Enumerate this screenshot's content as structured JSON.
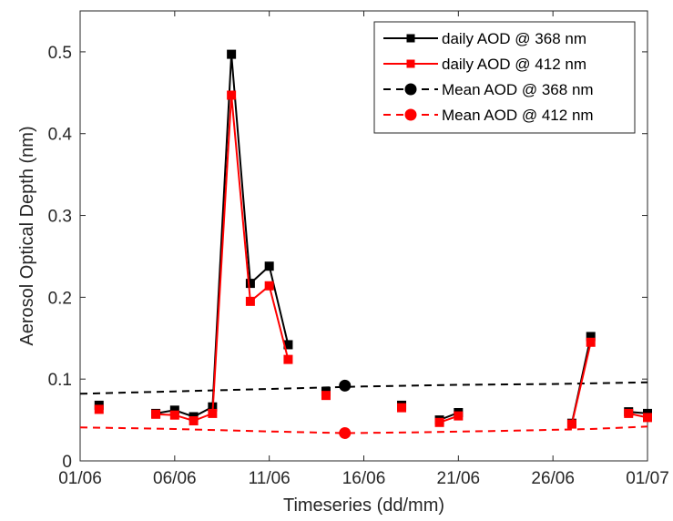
{
  "chart_data": {
    "type": "line",
    "title": "",
    "xlabel": "Timeseries (dd/mm)",
    "ylabel": "Aerosol Optical Depth (nm)",
    "xlim": [
      1,
      31
    ],
    "ylim": [
      0,
      0.55
    ],
    "xticks": [
      {
        "value": 1,
        "label": "01/06"
      },
      {
        "value": 6,
        "label": "06/06"
      },
      {
        "value": 11,
        "label": "11/06"
      },
      {
        "value": 16,
        "label": "16/06"
      },
      {
        "value": 21,
        "label": "21/06"
      },
      {
        "value": 26,
        "label": "26/06"
      },
      {
        "value": 31,
        "label": "01/07"
      }
    ],
    "yticks": [
      {
        "value": 0,
        "label": "0"
      },
      {
        "value": 0.1,
        "label": "0.1"
      },
      {
        "value": 0.2,
        "label": "0.2"
      },
      {
        "value": 0.3,
        "label": "0.3"
      },
      {
        "value": 0.4,
        "label": "0.4"
      },
      {
        "value": 0.5,
        "label": "0.5"
      }
    ],
    "grid": false,
    "legend_position": "top-right",
    "series": [
      {
        "name": "daily AOD @ 368 nm",
        "color": "#000000",
        "style": "solid",
        "marker": "square",
        "points": [
          [
            2,
            0.068
          ],
          [
            5,
            0.058
          ],
          [
            6,
            0.062
          ],
          [
            7,
            0.054
          ],
          [
            8,
            0.066
          ],
          [
            9,
            0.497
          ],
          [
            10,
            0.217
          ],
          [
            11,
            0.238
          ],
          [
            12,
            0.142
          ],
          [
            14,
            0.085
          ],
          [
            18,
            0.068
          ],
          [
            20,
            0.05
          ],
          [
            21,
            0.059
          ],
          [
            27,
            0.046
          ],
          [
            28,
            0.152
          ],
          [
            30,
            0.06
          ],
          [
            31,
            0.058
          ]
        ]
      },
      {
        "name": "daily AOD @ 412 nm",
        "color": "#ff0000",
        "style": "solid",
        "marker": "square",
        "points": [
          [
            2,
            0.063
          ],
          [
            5,
            0.057
          ],
          [
            6,
            0.056
          ],
          [
            7,
            0.049
          ],
          [
            8,
            0.058
          ],
          [
            9,
            0.447
          ],
          [
            10,
            0.195
          ],
          [
            11,
            0.214
          ],
          [
            12,
            0.124
          ],
          [
            14,
            0.08
          ],
          [
            18,
            0.065
          ],
          [
            20,
            0.047
          ],
          [
            21,
            0.055
          ],
          [
            27,
            0.045
          ],
          [
            28,
            0.145
          ],
          [
            30,
            0.058
          ],
          [
            31,
            0.053
          ]
        ]
      },
      {
        "name": "Mean AOD @ 368 nm",
        "color": "#000000",
        "style": "dashed",
        "marker": "circle",
        "marker_at": [
          15,
          0.092
        ],
        "points": [
          [
            1,
            0.082
          ],
          [
            6,
            0.085
          ],
          [
            11,
            0.088
          ],
          [
            16,
            0.091
          ],
          [
            21,
            0.093
          ],
          [
            26,
            0.094
          ],
          [
            31,
            0.096
          ]
        ]
      },
      {
        "name": "Mean AOD @ 412 nm",
        "color": "#ff0000",
        "style": "dashed",
        "marker": "circle",
        "marker_at": [
          15,
          0.034
        ],
        "points": [
          [
            1,
            0.041
          ],
          [
            6,
            0.039
          ],
          [
            11,
            0.036
          ],
          [
            15,
            0.034
          ],
          [
            19,
            0.035
          ],
          [
            24,
            0.037
          ],
          [
            28,
            0.039
          ],
          [
            31,
            0.042
          ]
        ]
      }
    ]
  }
}
